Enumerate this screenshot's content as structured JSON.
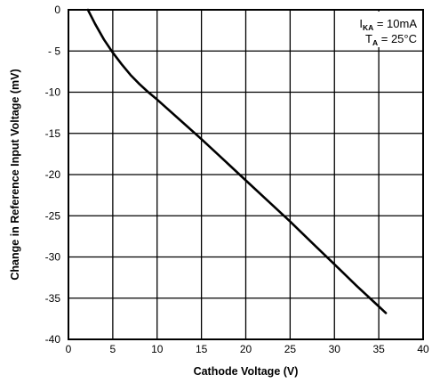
{
  "chart_data": {
    "type": "line",
    "xlabel": "Cathode Voltage (V)",
    "ylabel": "Change in Reference Input Voltage  (mV)",
    "xlim": [
      0,
      40
    ],
    "ylim": [
      -40,
      0
    ],
    "xticks": [
      0,
      5,
      10,
      15,
      20,
      25,
      30,
      35,
      40
    ],
    "yticks": [
      0,
      -5,
      -10,
      -15,
      -20,
      -25,
      -30,
      -35,
      -40
    ],
    "xtick_labels": [
      "0",
      "5",
      "10",
      "15",
      "20",
      "25",
      "30",
      "35",
      "40"
    ],
    "ytick_labels": [
      "0",
      "- 5",
      "-10",
      "-15",
      "-20",
      "-25",
      "-30",
      "-35",
      "-40"
    ],
    "grid": true,
    "annotations": [
      {
        "symbol": "I",
        "subscript": "KA",
        "text": " = 10mA"
      },
      {
        "symbol": "T",
        "subscript": "A",
        "text": " = 25°C"
      }
    ],
    "series": [
      {
        "x": [
          2.2,
          3.0,
          4.0,
          5.0,
          6.0,
          7.0,
          8.0,
          9.0,
          10.0,
          12.5,
          15.0,
          17.5,
          20.0,
          22.5,
          25.0,
          27.5,
          30.0,
          32.5,
          35.0,
          35.8
        ],
        "y": [
          0.0,
          -1.7,
          -3.6,
          -5.2,
          -6.6,
          -7.9,
          -9.0,
          -10.0,
          -10.9,
          -13.3,
          -15.7,
          -18.2,
          -20.7,
          -23.2,
          -25.7,
          -28.3,
          -30.9,
          -33.5,
          -36.0,
          -36.8
        ]
      }
    ]
  }
}
